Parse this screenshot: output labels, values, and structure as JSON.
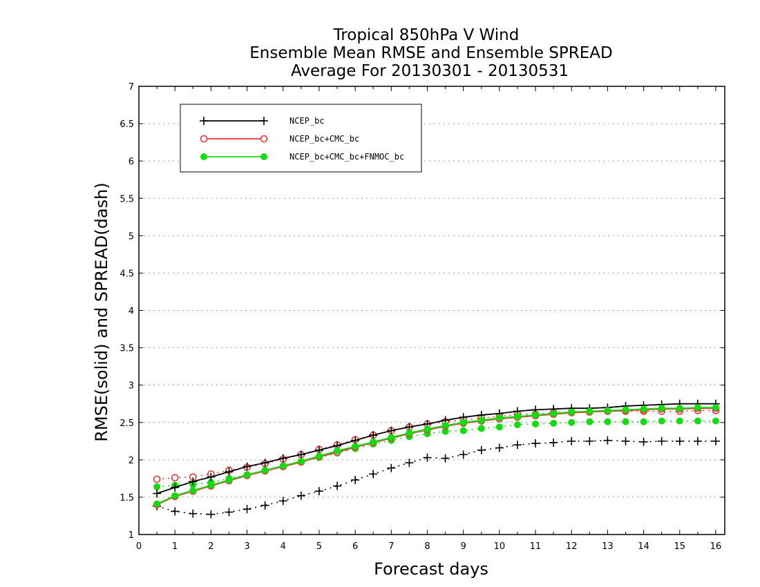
{
  "chart_data": {
    "type": "line",
    "title": [
      "Tropical 850hPa V Wind",
      "Ensemble Mean RMSE and Ensemble SPREAD",
      "Average For 20130301 - 20130531"
    ],
    "xlabel": "Forecast days",
    "ylabel": "RMSE(solid) and SPREAD(dash)",
    "xlim": [
      0,
      16.25
    ],
    "ylim": [
      1,
      7
    ],
    "xticks": [
      0,
      1,
      2,
      3,
      4,
      5,
      6,
      7,
      8,
      9,
      10,
      11,
      12,
      13,
      14,
      15,
      16
    ],
    "yticks": [
      1,
      1.5,
      2,
      2.5,
      3,
      3.5,
      4,
      4.5,
      5,
      5.5,
      6,
      6.5,
      7
    ],
    "ytick_labels": [
      "1",
      "1.5",
      "2",
      "2.5",
      "3",
      "3.5",
      "4",
      "4.5",
      "5",
      "5.5",
      "6",
      "6.5",
      "7"
    ],
    "grid": "horizontal dotted",
    "legend_position": "top-left",
    "x": [
      0.5,
      1,
      1.5,
      2,
      2.5,
      3,
      3.5,
      4,
      4.5,
      5,
      5.5,
      6,
      6.5,
      7,
      7.5,
      8,
      8.5,
      9,
      9.5,
      10,
      10.5,
      11,
      11.5,
      12,
      12.5,
      13,
      13.5,
      14,
      14.5,
      15,
      15.5,
      16
    ],
    "series": [
      {
        "name": "NCEP_bc",
        "color": "#000000",
        "marker": "plus",
        "rmse": [
          1.55,
          1.63,
          1.71,
          1.77,
          1.84,
          1.91,
          1.96,
          2.02,
          2.07,
          2.13,
          2.19,
          2.26,
          2.33,
          2.39,
          2.44,
          2.48,
          2.53,
          2.57,
          2.6,
          2.62,
          2.65,
          2.67,
          2.68,
          2.69,
          2.69,
          2.7,
          2.72,
          2.73,
          2.74,
          2.75,
          2.75,
          2.75
        ],
        "spread": [
          1.38,
          1.31,
          1.28,
          1.27,
          1.3,
          1.34,
          1.39,
          1.45,
          1.52,
          1.58,
          1.65,
          1.73,
          1.81,
          1.89,
          1.96,
          2.03,
          2.02,
          2.07,
          2.13,
          2.16,
          2.2,
          2.22,
          2.23,
          2.25,
          2.25,
          2.26,
          2.25,
          2.24,
          2.25,
          2.25,
          2.25,
          2.25
        ]
      },
      {
        "name": "NCEP_bc+CMC_bc",
        "color": "#ee3333",
        "marker": "open-circle",
        "rmse": [
          1.4,
          1.51,
          1.58,
          1.65,
          1.72,
          1.79,
          1.85,
          1.91,
          1.97,
          2.04,
          2.1,
          2.17,
          2.23,
          2.29,
          2.35,
          2.4,
          2.45,
          2.49,
          2.52,
          2.55,
          2.57,
          2.59,
          2.61,
          2.63,
          2.64,
          2.65,
          2.66,
          2.67,
          2.68,
          2.68,
          2.69,
          2.69
        ],
        "spread": [
          1.74,
          1.76,
          1.77,
          1.81,
          1.86,
          1.9,
          1.95,
          2.01,
          2.07,
          2.14,
          2.2,
          2.27,
          2.33,
          2.39,
          2.44,
          2.48,
          2.51,
          2.53,
          2.56,
          2.58,
          2.61,
          2.61,
          2.63,
          2.64,
          2.64,
          2.65,
          2.65,
          2.65,
          2.65,
          2.65,
          2.66,
          2.66
        ]
      },
      {
        "name": "NCEP_bc+CMC_bc+FNMOC_bc",
        "color": "#11dd11",
        "marker": "filled-circle",
        "rmse": [
          1.41,
          1.52,
          1.59,
          1.66,
          1.73,
          1.8,
          1.86,
          1.92,
          1.98,
          2.05,
          2.12,
          2.18,
          2.24,
          2.3,
          2.36,
          2.41,
          2.46,
          2.5,
          2.53,
          2.56,
          2.58,
          2.6,
          2.62,
          2.64,
          2.65,
          2.66,
          2.67,
          2.68,
          2.69,
          2.69,
          2.7,
          2.7
        ],
        "spread": [
          1.64,
          1.66,
          1.67,
          1.7,
          1.75,
          1.8,
          1.86,
          1.92,
          1.98,
          2.03,
          2.09,
          2.15,
          2.21,
          2.26,
          2.31,
          2.35,
          2.38,
          2.39,
          2.42,
          2.44,
          2.47,
          2.48,
          2.49,
          2.5,
          2.51,
          2.51,
          2.51,
          2.51,
          2.52,
          2.52,
          2.52,
          2.52
        ]
      }
    ]
  }
}
